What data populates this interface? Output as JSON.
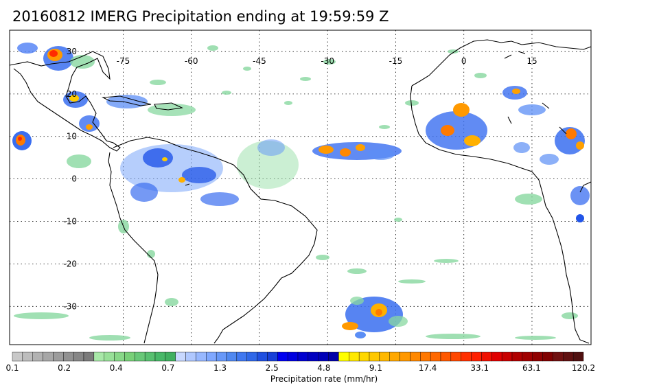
{
  "title": "20160812 IMERG Precipitation ending at 19:59:59 Z",
  "map": {
    "projection": "cylindrical equidistant",
    "lon_range": [
      -100,
      28
    ],
    "lat_range": [
      -39,
      35
    ],
    "grid": "dotted",
    "lon_labels": [
      {
        "lon": -75,
        "text": "-75"
      },
      {
        "lon": -60,
        "text": "-60"
      },
      {
        "lon": -45,
        "text": "-45"
      },
      {
        "lon": -30,
        "text": "-30"
      },
      {
        "lon": -15,
        "text": "-15"
      },
      {
        "lon": 0,
        "text": "0"
      },
      {
        "lon": 15,
        "text": "15"
      }
    ],
    "lat_labels": [
      {
        "lat": 30,
        "text": "30"
      },
      {
        "lat": 20,
        "text": "20"
      },
      {
        "lat": 10,
        "text": "10"
      },
      {
        "lat": 0,
        "text": "0"
      },
      {
        "lat": -10,
        "text": "-10"
      },
      {
        "lat": -20,
        "text": "-20"
      },
      {
        "lat": -30,
        "text": "-30"
      }
    ],
    "ocean_color": "#ffffff",
    "coast_color": "#000000"
  },
  "colorbar": {
    "label": "Precipitation rate (mm/hr)",
    "ticks": [
      "0.1",
      "0.2",
      "0.4",
      "0.7",
      "1.3",
      "2.5",
      "4.8",
      "9.1",
      "17.4",
      "33.1",
      "63.1",
      "120.2"
    ],
    "colors": [
      "#c8c8c8",
      "#bdbdbd",
      "#b2b2b2",
      "#a7a7a7",
      "#9c9c9c",
      "#919191",
      "#868686",
      "#7b7b7b",
      "#a8e8a8",
      "#98e098",
      "#88d888",
      "#78d078",
      "#68c878",
      "#58c070",
      "#48b868",
      "#40b060",
      "#c8d8ff",
      "#b0c8ff",
      "#98b8ff",
      "#80a8ff",
      "#6898f8",
      "#5088f0",
      "#4078f0",
      "#3068e8",
      "#2050e0",
      "#1840d8",
      "#0000f0",
      "#0000e0",
      "#0000d0",
      "#0000c0",
      "#0000b8",
      "#0000a8",
      "#ffff00",
      "#ffe800",
      "#ffd800",
      "#ffc800",
      "#ffb800",
      "#ffa800",
      "#ff9800",
      "#ff8800",
      "#ff7800",
      "#ff6800",
      "#ff5800",
      "#ff4800",
      "#ff3000",
      "#ff2000",
      "#f01000",
      "#e00000",
      "#c80000",
      "#b00000",
      "#a00000",
      "#900000",
      "#800000",
      "#701010",
      "#601010",
      "#501010"
    ]
  }
}
